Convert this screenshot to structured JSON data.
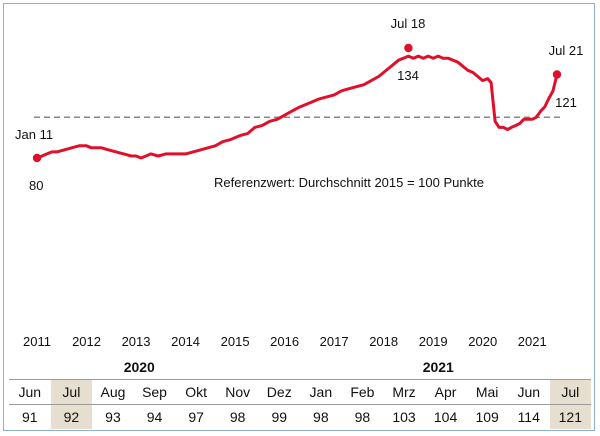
{
  "chart_data": {
    "type": "line",
    "x_ticks": [
      "2011",
      "2012",
      "2013",
      "2014",
      "2015",
      "2016",
      "2017",
      "2018",
      "2019",
      "2020",
      "2021"
    ],
    "ylim": [
      70,
      145
    ],
    "reference": {
      "value": 100,
      "label": "Referenzwert: Durchschnitt 2015 = 100 Punkte"
    },
    "annotations": [
      {
        "label": "Jan 11",
        "value_label": "80",
        "x": 2011.0,
        "y": 80
      },
      {
        "label": "Jul 18",
        "value_label": "134",
        "x": 2018.5,
        "y": 134
      },
      {
        "label": "Jul 21",
        "value_label": "121",
        "x": 2021.5,
        "y": 121
      }
    ],
    "series": [
      {
        "color": "#e0102a",
        "points": [
          [
            2011.0,
            80
          ],
          [
            2011.1,
            81
          ],
          [
            2011.2,
            82
          ],
          [
            2011.3,
            83
          ],
          [
            2011.4,
            83
          ],
          [
            2011.55,
            84
          ],
          [
            2011.7,
            85
          ],
          [
            2011.85,
            86
          ],
          [
            2012.0,
            86
          ],
          [
            2012.1,
            85
          ],
          [
            2012.3,
            85
          ],
          [
            2012.45,
            84
          ],
          [
            2012.6,
            83
          ],
          [
            2012.75,
            82
          ],
          [
            2012.9,
            81
          ],
          [
            2013.0,
            81
          ],
          [
            2013.1,
            80
          ],
          [
            2013.2,
            81
          ],
          [
            2013.3,
            82
          ],
          [
            2013.45,
            81
          ],
          [
            2013.6,
            82
          ],
          [
            2013.75,
            82
          ],
          [
            2013.9,
            82
          ],
          [
            2014.0,
            82
          ],
          [
            2014.15,
            83
          ],
          [
            2014.3,
            84
          ],
          [
            2014.45,
            85
          ],
          [
            2014.6,
            86
          ],
          [
            2014.75,
            88
          ],
          [
            2014.9,
            89
          ],
          [
            2015.0,
            90
          ],
          [
            2015.1,
            91
          ],
          [
            2015.25,
            92
          ],
          [
            2015.4,
            95
          ],
          [
            2015.55,
            96
          ],
          [
            2015.7,
            98
          ],
          [
            2015.85,
            99
          ],
          [
            2016.0,
            101
          ],
          [
            2016.15,
            103
          ],
          [
            2016.3,
            105
          ],
          [
            2016.5,
            107
          ],
          [
            2016.7,
            109
          ],
          [
            2016.85,
            110
          ],
          [
            2017.0,
            111
          ],
          [
            2017.15,
            113
          ],
          [
            2017.3,
            114
          ],
          [
            2017.45,
            115
          ],
          [
            2017.6,
            116
          ],
          [
            2017.75,
            118
          ],
          [
            2017.9,
            120
          ],
          [
            2018.0,
            122
          ],
          [
            2018.1,
            124
          ],
          [
            2018.2,
            126
          ],
          [
            2018.3,
            128
          ],
          [
            2018.4,
            129
          ],
          [
            2018.5,
            130
          ],
          [
            2018.6,
            129
          ],
          [
            2018.7,
            130
          ],
          [
            2018.8,
            129
          ],
          [
            2018.9,
            130
          ],
          [
            2019.0,
            129
          ],
          [
            2019.1,
            130
          ],
          [
            2019.2,
            129
          ],
          [
            2019.3,
            129
          ],
          [
            2019.4,
            128
          ],
          [
            2019.5,
            127
          ],
          [
            2019.6,
            125
          ],
          [
            2019.7,
            123
          ],
          [
            2019.8,
            122
          ],
          [
            2019.9,
            120
          ],
          [
            2020.0,
            118
          ],
          [
            2020.1,
            119
          ],
          [
            2020.17,
            117
          ],
          [
            2020.25,
            98
          ],
          [
            2020.33,
            95
          ],
          [
            2020.42,
            95
          ],
          [
            2020.5,
            94
          ],
          [
            2020.58,
            95
          ],
          [
            2020.67,
            96
          ],
          [
            2020.75,
            97
          ],
          [
            2020.83,
            99
          ],
          [
            2020.92,
            99
          ],
          [
            2021.0,
            99
          ],
          [
            2021.08,
            100
          ],
          [
            2021.17,
            103
          ],
          [
            2021.25,
            105
          ],
          [
            2021.33,
            109
          ],
          [
            2021.42,
            113
          ],
          [
            2021.5,
            121
          ]
        ]
      }
    ]
  },
  "table": {
    "years": [
      "2020",
      "2021"
    ],
    "months": [
      "Jun",
      "Jul",
      "Aug",
      "Sep",
      "Okt",
      "Nov",
      "Dez",
      "Jan",
      "Feb",
      "Mrz",
      "Apr",
      "Mai",
      "Jun",
      "Jul"
    ],
    "values": [
      "91",
      "92",
      "93",
      "94",
      "97",
      "98",
      "99",
      "98",
      "98",
      "103",
      "104",
      "109",
      "114",
      "121"
    ],
    "highlighted": [
      1,
      13
    ]
  }
}
